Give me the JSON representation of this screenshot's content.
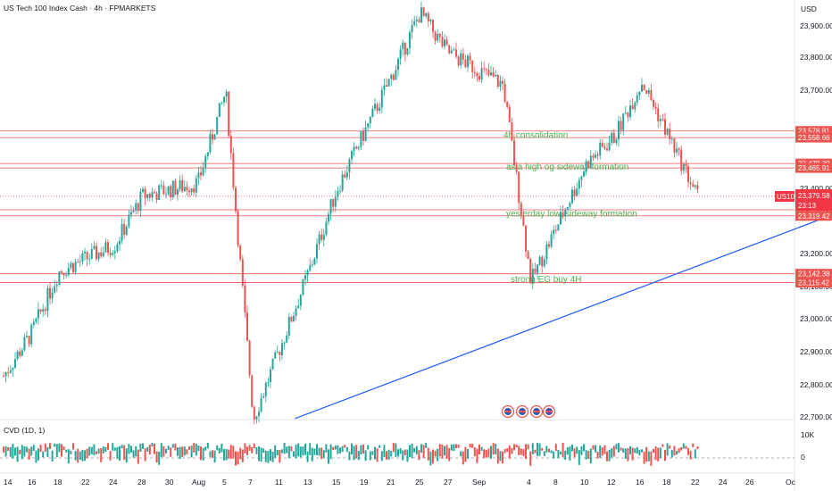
{
  "header": {
    "title": "US Tech 100 Index Cash · 4h · FPMARKETS",
    "currency": "USD"
  },
  "colors": {
    "up": "#26a69a",
    "down": "#ef5350",
    "level_line": "#ef5350",
    "trendline": "#2962ff",
    "annotation": "#4caf50",
    "badge": "#ef5350",
    "price_badge": "#f23645"
  },
  "price_axis": {
    "ticks": [
      "23,900.00",
      "23,800.00",
      "23,700.00",
      "23,400.00",
      "23,200.00",
      "23,100.00",
      "23,000.00",
      "22,900.00",
      "22,800.00",
      "22,700.00"
    ]
  },
  "time_axis": {
    "labels": [
      "14",
      "16",
      "18",
      "22",
      "24",
      "28",
      "30",
      "Aug",
      "5",
      "7",
      "11",
      "13",
      "15",
      "19",
      "21",
      "25",
      "27",
      "Sep",
      "4",
      "8",
      "10",
      "12",
      "16",
      "18",
      "22",
      "24",
      "26",
      "Oc"
    ]
  },
  "current_price": {
    "symbol": "US100",
    "price": "23,379.58",
    "countdown": "23:13"
  },
  "levels": [
    {
      "price": 23578.81,
      "label": "23,578.81"
    },
    {
      "price": 23558.66,
      "label": "23,558.66"
    },
    {
      "price": 23479.39,
      "label": "23,479.39"
    },
    {
      "price": 23465.91,
      "label": "23,465.91"
    },
    {
      "price": 23337.85,
      "label": "23,337.85"
    },
    {
      "price": 23319.42,
      "label": "23,319.42"
    },
    {
      "price": 23142.38,
      "label": "23,142.38"
    },
    {
      "price": 23115.42,
      "label": "23,115.42"
    }
  ],
  "annotations": [
    {
      "text": "4h consolidation",
      "price": 23568
    },
    {
      "text": "asia high og sideway formation",
      "price": 23472
    },
    {
      "text": "yesterday low, sideway formation",
      "price": 23328
    },
    {
      "text": "strong EG buy 4H",
      "price": 23128
    }
  ],
  "indicator": {
    "label": "CVD (1D, 1)",
    "ticks": [
      "10K",
      "0"
    ]
  },
  "event_icons": [
    "flag-icon",
    "flag-icon",
    "flag-icon",
    "flag-icon"
  ],
  "chart_data": {
    "type": "candlestick",
    "title": "US Tech 100 Index Cash · 4h · FPMARKETS",
    "y_unit": "USD",
    "ylim": [
      22690,
      23970
    ],
    "waypoints": [
      {
        "date": "Jul 14",
        "price": 22830
      },
      {
        "date": "Jul 16",
        "price": 22960
      },
      {
        "date": "Jul 18",
        "price": 23150
      },
      {
        "date": "Jul 22",
        "price": 23230
      },
      {
        "date": "Jul 24",
        "price": 23380
      },
      {
        "date": "Jul 28",
        "price": 23420
      },
      {
        "date": "Jul 30",
        "price": 23700
      },
      {
        "date": "Aug 1",
        "price": 22700
      },
      {
        "date": "Aug 5",
        "price": 23150
      },
      {
        "date": "Aug 7",
        "price": 23400
      },
      {
        "date": "Aug 11",
        "price": 23750
      },
      {
        "date": "Aug 13",
        "price": 23940
      },
      {
        "date": "Aug 15",
        "price": 23820
      },
      {
        "date": "Aug 19",
        "price": 23720
      },
      {
        "date": "Aug 21",
        "price": 23120
      },
      {
        "date": "Aug 25",
        "price": 23480
      },
      {
        "date": "Aug 27",
        "price": 23560
      },
      {
        "date": "Aug 29",
        "price": 23730
      },
      {
        "date": "Sep 2",
        "price": 23379.58
      }
    ],
    "trendline": [
      {
        "date": "Aug 4",
        "price": 22700
      },
      {
        "date": "Sep 19",
        "price": 23440
      }
    ],
    "grid": false
  }
}
